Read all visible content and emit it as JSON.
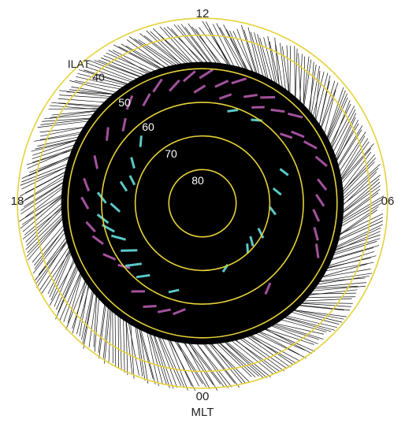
{
  "plot": {
    "mlt_labels": {
      "top": "12",
      "bottom": "00",
      "left": "18",
      "right": "06"
    },
    "mlt_axis_title": "MLT",
    "ilat_axis_title": "ILAT",
    "ilat_rings": [
      {
        "ilat": 40,
        "label": "40"
      },
      {
        "ilat": 50,
        "label": "50"
      },
      {
        "ilat": 60,
        "label": "60"
      },
      {
        "ilat": 70,
        "label": "70"
      },
      {
        "ilat": 80,
        "label": "80"
      }
    ],
    "colors": {
      "ring": "#e6d23a",
      "background_fill": "#000000",
      "track": "#111111",
      "cyan_segments": "#5bc8c8",
      "magenta_segments": "#a2529c"
    },
    "cyan_segments": [
      {
        "mlt": 10.8,
        "ilat": 62.5,
        "len": 1.6
      },
      {
        "mlt": 9.4,
        "ilat": 62.0,
        "len": 3.0
      },
      {
        "mlt": 8.8,
        "ilat": 62.5,
        "len": 4.0
      },
      {
        "mlt": 8.2,
        "ilat": 64.0,
        "len": 4.2
      },
      {
        "mlt": 7.5,
        "ilat": 63.0,
        "len": 3.5
      },
      {
        "mlt": 7.0,
        "ilat": 61.0,
        "len": 3.0
      },
      {
        "mlt": 6.6,
        "ilat": 60.0,
        "len": 2.8
      },
      {
        "mlt": 6.2,
        "ilat": 64.0,
        "len": 2.6
      },
      {
        "mlt": 5.8,
        "ilat": 60.0,
        "len": 2.6
      },
      {
        "mlt": 5.2,
        "ilat": 66.0,
        "len": 2.4
      },
      {
        "mlt": 4.8,
        "ilat": 68.0,
        "len": 2.2
      },
      {
        "mlt": 4.0,
        "ilat": 66.0,
        "len": 2.4
      },
      {
        "mlt": 3.0,
        "ilat": 64.0,
        "len": 2.2
      },
      {
        "mlt": 15.5,
        "ilat": 71.5,
        "len": 2.4
      },
      {
        "mlt": 15.0,
        "ilat": 71.0,
        "len": 2.2
      },
      {
        "mlt": 16.2,
        "ilat": 70.5,
        "len": 2.6
      },
      {
        "mlt": 17.6,
        "ilat": 69.0,
        "len": 2.0
      },
      {
        "mlt": 18.6,
        "ilat": 67.5,
        "len": 2.0
      },
      {
        "mlt": 19.4,
        "ilat": 64.0,
        "len": 1.6
      },
      {
        "mlt": 21.8,
        "ilat": 60.5,
        "len": 1.6
      },
      {
        "mlt": 22.8,
        "ilat": 61.0,
        "len": 1.4
      },
      {
        "mlt": 13.3,
        "ilat": 69.5,
        "len": 1.6
      }
    ],
    "magenta_segments": [
      {
        "mlt": 11.2,
        "ilat": 57.0,
        "len": 2.2
      },
      {
        "mlt": 10.7,
        "ilat": 56.0,
        "len": 2.0
      },
      {
        "mlt": 10.2,
        "ilat": 55.5,
        "len": 2.0
      },
      {
        "mlt": 9.6,
        "ilat": 57.5,
        "len": 2.4
      },
      {
        "mlt": 8.6,
        "ilat": 60.0,
        "len": 2.2
      },
      {
        "mlt": 8.0,
        "ilat": 58.0,
        "len": 2.4
      },
      {
        "mlt": 7.3,
        "ilat": 57.0,
        "len": 2.2
      },
      {
        "mlt": 6.8,
        "ilat": 56.0,
        "len": 2.0
      },
      {
        "mlt": 6.0,
        "ilat": 55.0,
        "len": 2.0
      },
      {
        "mlt": 5.4,
        "ilat": 55.0,
        "len": 2.0
      },
      {
        "mlt": 4.6,
        "ilat": 56.0,
        "len": 2.2
      },
      {
        "mlt": 14.5,
        "ilat": 58.0,
        "len": 1.8
      },
      {
        "mlt": 16.5,
        "ilat": 53.0,
        "len": 2.2
      },
      {
        "mlt": 17.0,
        "ilat": 55.0,
        "len": 2.0
      },
      {
        "mlt": 17.6,
        "ilat": 56.0,
        "len": 2.0
      },
      {
        "mlt": 18.1,
        "ilat": 55.0,
        "len": 2.2
      },
      {
        "mlt": 18.6,
        "ilat": 54.0,
        "len": 2.0
      },
      {
        "mlt": 19.3,
        "ilat": 52.5,
        "len": 2.2
      },
      {
        "mlt": 19.9,
        "ilat": 53.5,
        "len": 2.4
      },
      {
        "mlt": 20.4,
        "ilat": 55.0,
        "len": 2.2
      },
      {
        "mlt": 20.9,
        "ilat": 52.0,
        "len": 2.4
      },
      {
        "mlt": 21.4,
        "ilat": 54.5,
        "len": 2.2
      },
      {
        "mlt": 21.9,
        "ilat": 53.0,
        "len": 2.4
      },
      {
        "mlt": 22.4,
        "ilat": 55.0,
        "len": 2.2
      },
      {
        "mlt": 22.9,
        "ilat": 52.0,
        "len": 2.6
      },
      {
        "mlt": 23.4,
        "ilat": 54.0,
        "len": 2.4
      },
      {
        "mlt": 23.9,
        "ilat": 51.5,
        "len": 2.6
      },
      {
        "mlt": 0.4,
        "ilat": 52.0,
        "len": 2.6
      },
      {
        "mlt": 0.9,
        "ilat": 54.0,
        "len": 2.4
      },
      {
        "mlt": 1.4,
        "ilat": 52.5,
        "len": 2.6
      },
      {
        "mlt": 1.9,
        "ilat": 55.0,
        "len": 2.2
      },
      {
        "mlt": 2.4,
        "ilat": 53.0,
        "len": 2.4
      },
      {
        "mlt": 3.0,
        "ilat": 57.0,
        "len": 2.2
      },
      {
        "mlt": 3.6,
        "ilat": 55.0,
        "len": 2.0
      },
      {
        "mlt": 0.1,
        "ilat": 56.0,
        "len": 2.0
      },
      {
        "mlt": 23.2,
        "ilat": 57.5,
        "len": 2.0
      },
      {
        "mlt": 22.0,
        "ilat": 57.0,
        "len": 2.0
      },
      {
        "mlt": 20.6,
        "ilat": 58.0,
        "len": 2.0
      }
    ]
  }
}
